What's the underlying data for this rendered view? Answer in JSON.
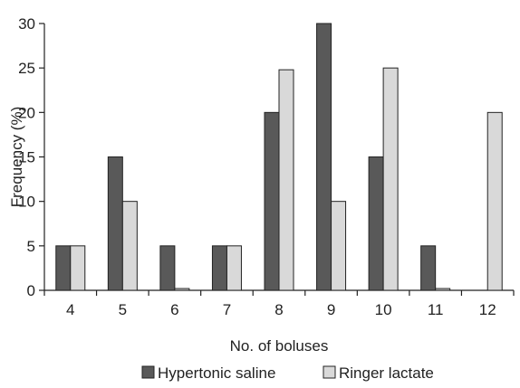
{
  "chart_data": {
    "type": "bar",
    "categories": [
      "4",
      "5",
      "6",
      "7",
      "8",
      "9",
      "10",
      "11",
      "12"
    ],
    "series": [
      {
        "name": "Hypertonic saline",
        "values": [
          5,
          15,
          5,
          5,
          20,
          30,
          15,
          5,
          0
        ],
        "color": "#595959"
      },
      {
        "name": "Ringer lactate",
        "values": [
          5,
          10,
          0.2,
          5,
          24.8,
          10,
          25,
          0.2,
          20
        ],
        "color": "#d9d9d9"
      }
    ],
    "title": "",
    "xlabel": "No. of boluses",
    "ylabel": "Frequency (%)",
    "ylim": [
      0,
      30
    ],
    "yticks": [
      0,
      5,
      10,
      15,
      20,
      25,
      30
    ],
    "grid": false,
    "legend": "bottom"
  }
}
